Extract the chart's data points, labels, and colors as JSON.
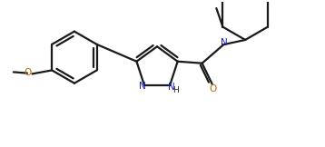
{
  "bg_color": "#ffffff",
  "line_color": "#1a1a1a",
  "bond_width": 1.6,
  "figsize": [
    3.58,
    1.62
  ],
  "dpi": 100,
  "N_color": "#2222bb",
  "O_color": "#bb6600",
  "font_size": 7.5,
  "xlim": [
    0,
    9
  ],
  "ylim": [
    0,
    4
  ]
}
